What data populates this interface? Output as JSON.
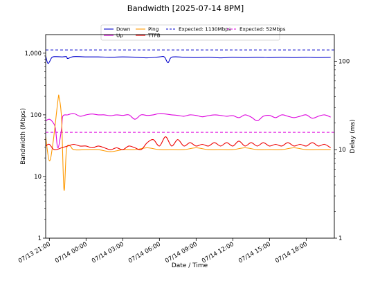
{
  "chart_data": {
    "type": "line",
    "title": "Bandwidth [2025-07-14 8PM]",
    "xlabel": "Date / Time",
    "ylabel_left": "Bandwidth (Mbps)",
    "ylabel_right": "Delay (ms)",
    "left_axis": {
      "scale": "log",
      "ylim": [
        1,
        2000
      ],
      "ticks": [
        1,
        10,
        100,
        1000
      ],
      "tick_labels": [
        "1",
        "10",
        "100",
        "1,000"
      ]
    },
    "right_axis": {
      "scale": "log",
      "ylim": [
        1,
        200
      ],
      "ticks": [
        1,
        10,
        100
      ],
      "tick_labels": [
        "1",
        "10",
        "100"
      ]
    },
    "x_range_hours": [
      -3.3,
      20.3
    ],
    "x_ticks": [
      {
        "hour": -3,
        "label": "07/13 21:00"
      },
      {
        "hour": 0,
        "label": "07/14 00:00"
      },
      {
        "hour": 3,
        "label": "07/14 03:00"
      },
      {
        "hour": 6,
        "label": "07/14 06:00"
      },
      {
        "hour": 9,
        "label": "07/14 09:00"
      },
      {
        "hour": 12,
        "label": "07/14 12:00"
      },
      {
        "hour": 15,
        "label": "07/14 15:00"
      },
      {
        "hour": 18,
        "label": "07/14 18:00"
      }
    ],
    "legend": {
      "placement": "top-center",
      "ncol": 4
    },
    "series": [
      {
        "name": "Down",
        "axis": "left",
        "color": "#0000cc",
        "style": "solid",
        "points": [
          [
            -3.3,
            900
          ],
          [
            -3.1,
            680
          ],
          [
            -2.8,
            850
          ],
          [
            -2.5,
            880
          ],
          [
            -2.0,
            870
          ],
          [
            -1.6,
            880
          ],
          [
            -1.5,
            820
          ],
          [
            -1.0,
            880
          ],
          [
            0,
            870
          ],
          [
            1,
            870
          ],
          [
            2,
            860
          ],
          [
            3,
            870
          ],
          [
            4,
            860
          ],
          [
            5,
            840
          ],
          [
            6,
            870
          ],
          [
            6.4,
            870
          ],
          [
            6.7,
            700
          ],
          [
            7.0,
            860
          ],
          [
            8,
            860
          ],
          [
            9,
            850
          ],
          [
            10,
            860
          ],
          [
            11,
            840
          ],
          [
            12,
            860
          ],
          [
            13,
            850
          ],
          [
            14,
            860
          ],
          [
            15,
            850
          ],
          [
            16,
            860
          ],
          [
            17,
            850
          ],
          [
            18,
            860
          ],
          [
            19,
            850
          ],
          [
            20,
            860
          ]
        ]
      },
      {
        "name": "Up",
        "axis": "left",
        "color": "#dd00dd",
        "style": "solid",
        "points": [
          [
            -3.3,
            80
          ],
          [
            -3.0,
            85
          ],
          [
            -2.7,
            75
          ],
          [
            -2.5,
            60
          ],
          [
            -2.3,
            29
          ],
          [
            -2.0,
            60
          ],
          [
            -1.9,
            95
          ],
          [
            -1.5,
            100
          ],
          [
            -1.0,
            105
          ],
          [
            -0.5,
            95
          ],
          [
            0,
            100
          ],
          [
            0.5,
            103
          ],
          [
            1,
            100
          ],
          [
            1.5,
            100
          ],
          [
            2,
            97
          ],
          [
            2.5,
            100
          ],
          [
            3,
            98
          ],
          [
            3.5,
            100
          ],
          [
            4,
            85
          ],
          [
            4.5,
            100
          ],
          [
            5,
            98
          ],
          [
            5.5,
            100
          ],
          [
            6,
            105
          ],
          [
            6.5,
            103
          ],
          [
            7,
            100
          ],
          [
            7.5,
            98
          ],
          [
            8,
            95
          ],
          [
            8.5,
            100
          ],
          [
            9,
            98
          ],
          [
            9.5,
            93
          ],
          [
            10,
            97
          ],
          [
            10.5,
            100
          ],
          [
            11,
            98
          ],
          [
            11.5,
            95
          ],
          [
            12,
            97
          ],
          [
            12.5,
            90
          ],
          [
            13,
            100
          ],
          [
            13.5,
            92
          ],
          [
            14,
            80
          ],
          [
            14.5,
            95
          ],
          [
            15,
            98
          ],
          [
            15.5,
            90
          ],
          [
            16,
            100
          ],
          [
            16.5,
            95
          ],
          [
            17,
            90
          ],
          [
            17.5,
            95
          ],
          [
            18,
            100
          ],
          [
            18.5,
            88
          ],
          [
            19,
            95
          ],
          [
            19.5,
            100
          ],
          [
            20,
            92
          ]
        ]
      },
      {
        "name": "Ping",
        "axis": "right",
        "color": "#ff9900",
        "style": "solid",
        "points": [
          [
            -3.3,
            14
          ],
          [
            -3.0,
            7.5
          ],
          [
            -2.7,
            12
          ],
          [
            -2.3,
            36
          ],
          [
            -2.2,
            39
          ],
          [
            -2.0,
            22
          ],
          [
            -1.8,
            3.5
          ],
          [
            -1.6,
            10
          ],
          [
            -1.3,
            11
          ],
          [
            -1.0,
            10
          ],
          [
            0,
            10
          ],
          [
            1,
            10
          ],
          [
            2,
            9.5
          ],
          [
            3,
            10
          ],
          [
            4,
            10
          ],
          [
            5,
            10.5
          ],
          [
            6,
            10
          ],
          [
            7,
            10
          ],
          [
            8,
            10
          ],
          [
            9,
            10.5
          ],
          [
            10,
            10
          ],
          [
            11,
            10
          ],
          [
            12,
            10
          ],
          [
            13,
            10.5
          ],
          [
            14,
            10
          ],
          [
            15,
            10
          ],
          [
            16,
            10
          ],
          [
            17,
            10.5
          ],
          [
            18,
            10
          ],
          [
            19,
            10
          ],
          [
            20,
            10
          ]
        ]
      },
      {
        "name": "TTFB",
        "axis": "right",
        "color": "#ee0000",
        "style": "solid",
        "points": [
          [
            -3.3,
            11
          ],
          [
            -3.0,
            11.5
          ],
          [
            -2.6,
            10
          ],
          [
            -2.0,
            10.5
          ],
          [
            -1.5,
            11
          ],
          [
            -1.0,
            11.5
          ],
          [
            -0.5,
            11
          ],
          [
            0,
            11
          ],
          [
            0.5,
            10.5
          ],
          [
            1,
            11
          ],
          [
            1.5,
            10.5
          ],
          [
            2,
            10
          ],
          [
            2.5,
            10.5
          ],
          [
            3,
            10
          ],
          [
            3.5,
            11
          ],
          [
            4,
            10.5
          ],
          [
            4.5,
            10
          ],
          [
            5,
            12
          ],
          [
            5.5,
            13
          ],
          [
            6,
            11
          ],
          [
            6.5,
            14
          ],
          [
            7,
            11
          ],
          [
            7.5,
            13
          ],
          [
            8,
            11
          ],
          [
            8.5,
            12
          ],
          [
            9,
            11
          ],
          [
            9.5,
            11.5
          ],
          [
            10,
            11
          ],
          [
            10.5,
            12
          ],
          [
            11,
            11
          ],
          [
            11.5,
            12
          ],
          [
            12,
            11
          ],
          [
            12.5,
            12.5
          ],
          [
            13,
            11
          ],
          [
            13.5,
            12
          ],
          [
            14,
            11
          ],
          [
            14.5,
            12
          ],
          [
            15,
            11
          ],
          [
            15.5,
            11.5
          ],
          [
            16,
            11
          ],
          [
            16.5,
            12
          ],
          [
            17,
            11
          ],
          [
            17.5,
            11.5
          ],
          [
            18,
            11
          ],
          [
            18.5,
            12
          ],
          [
            19,
            11
          ],
          [
            19.5,
            11.5
          ],
          [
            20,
            10.5
          ]
        ]
      }
    ],
    "expected_lines": [
      {
        "name": "Expected: 1130Mbps",
        "value": 1130,
        "axis": "left",
        "color": "#0000cc",
        "style": "dashed"
      },
      {
        "name": "Expected: 52Mbps",
        "value": 52,
        "axis": "left",
        "color": "#dd00dd",
        "style": "dashed"
      }
    ]
  }
}
